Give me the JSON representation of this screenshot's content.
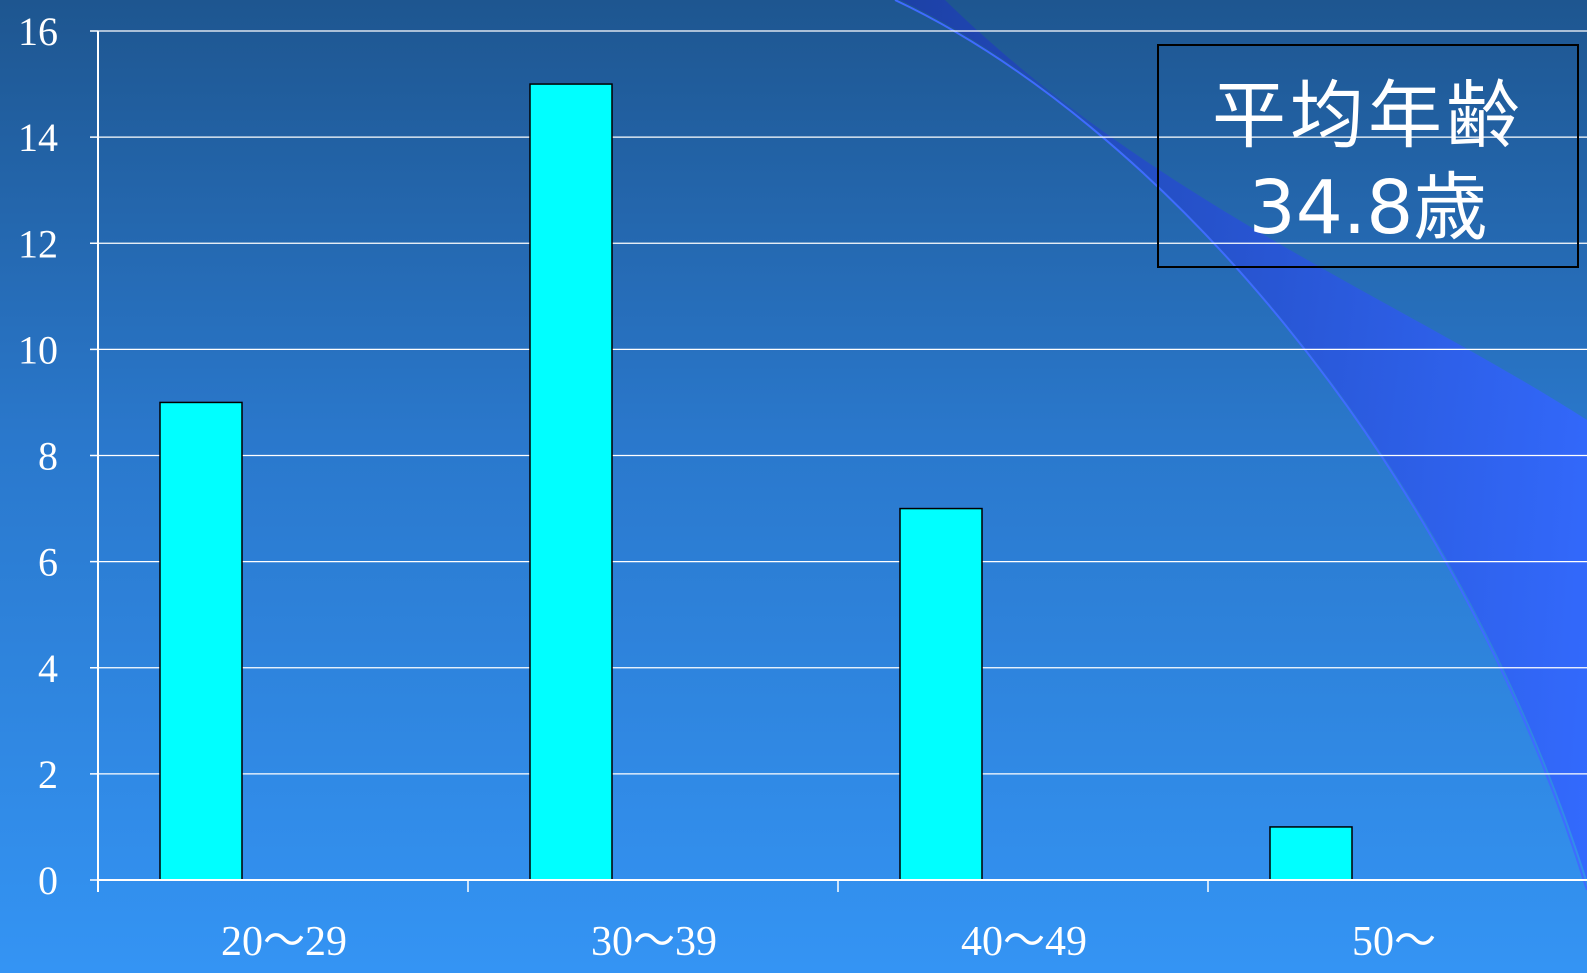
{
  "chart_data": {
    "type": "bar",
    "categories": [
      "20〜29",
      "30〜39",
      "40〜49",
      "50〜"
    ],
    "values": [
      9,
      15,
      7,
      1
    ],
    "title": "",
    "xlabel": "",
    "ylabel": "",
    "ylim": [
      0,
      16
    ],
    "yticks": [
      "0",
      "2",
      "4",
      "6",
      "8",
      "10",
      "12",
      "14",
      "16"
    ],
    "grid": true,
    "legend": "none"
  },
  "annotation": {
    "title": "平均年齢",
    "value": "34.8歳"
  },
  "colors": {
    "bar": "#00ffff",
    "bar_edge": "#000000",
    "grid": "#ffffff",
    "axis": "#ffffff",
    "text": "#ffffff",
    "swoosh": "#2f5ff0"
  }
}
